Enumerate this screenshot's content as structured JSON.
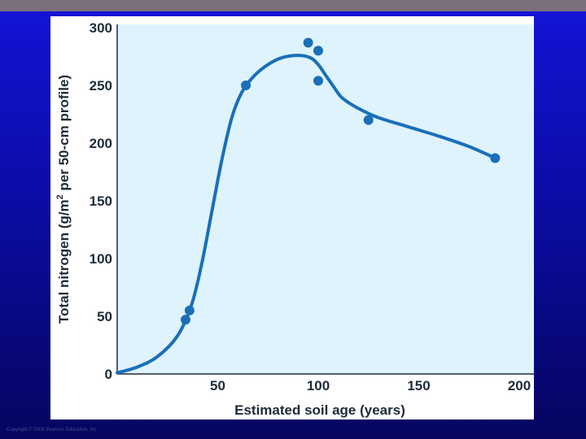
{
  "copyright": "Copyright © 2006 Pearson Education, Inc.",
  "colors": {
    "background_top": "#1414d8",
    "background_bottom": "#050560",
    "plot_fill": "#dff3fd",
    "accent": "#1a6fb8",
    "axis": "#1e2b39"
  },
  "chart_data": {
    "type": "scatter",
    "xlabel": "Estimated soil age (years)",
    "ylabel_parts": [
      "Total nitrogen (g/m",
      "2",
      " per 50-cm profile)"
    ],
    "xlim": [
      0,
      200
    ],
    "ylim": [
      0,
      300
    ],
    "xticks": [
      "50",
      "100",
      "150",
      "200"
    ],
    "xtick_values": [
      50,
      100,
      150,
      200
    ],
    "yticks": [
      "0",
      "50",
      "100",
      "150",
      "200",
      "250",
      "300"
    ],
    "ytick_values": [
      0,
      50,
      100,
      150,
      200,
      250,
      300
    ],
    "grid": false,
    "points": [
      {
        "x": 34,
        "y": 47
      },
      {
        "x": 36,
        "y": 55
      },
      {
        "x": 64,
        "y": 250
      },
      {
        "x": 95,
        "y": 287
      },
      {
        "x": 100,
        "y": 280
      },
      {
        "x": 100,
        "y": 254
      },
      {
        "x": 125,
        "y": 220
      },
      {
        "x": 188,
        "y": 187
      }
    ],
    "fit_curve": [
      [
        0,
        1
      ],
      [
        10,
        6
      ],
      [
        20,
        15
      ],
      [
        30,
        33
      ],
      [
        37,
        60
      ],
      [
        42,
        95
      ],
      [
        47,
        140
      ],
      [
        52,
        185
      ],
      [
        57,
        222
      ],
      [
        62,
        244
      ],
      [
        68,
        258
      ],
      [
        75,
        268
      ],
      [
        82,
        274
      ],
      [
        90,
        276
      ],
      [
        96,
        274
      ],
      [
        100,
        268
      ],
      [
        104,
        258
      ],
      [
        108,
        248
      ],
      [
        112,
        239
      ],
      [
        120,
        230
      ],
      [
        130,
        222
      ],
      [
        145,
        214
      ],
      [
        160,
        206
      ],
      [
        175,
        197
      ],
      [
        188,
        187
      ]
    ]
  }
}
